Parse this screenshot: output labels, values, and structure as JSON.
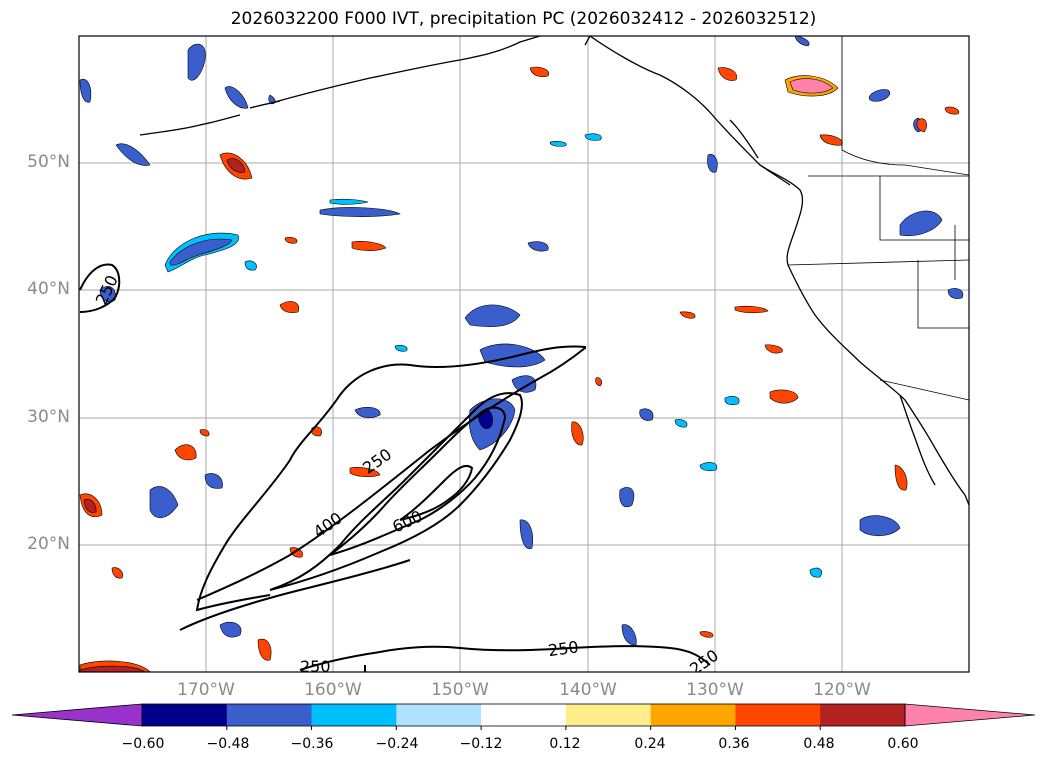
{
  "title": "2026032200 F000 IVT, precipitation PC (2026032412 - 2026032512)",
  "map": {
    "lat_labels": [
      "50°N",
      "40°N",
      "30°N",
      "20°N"
    ],
    "lon_labels": [
      "170°W",
      "160°W",
      "150°W",
      "140°W",
      "130°W",
      "120°W"
    ],
    "ivt_contour_labels": [
      "250",
      "250",
      "400",
      "600",
      "250",
      "250",
      "250"
    ],
    "colors": {
      "coast": "#000000",
      "grid": "#aaaaaa",
      "neg": [
        "#9932cc",
        "#00008b",
        "#3a5fcd",
        "#00bfff",
        "#b0e2ff"
      ],
      "pos": [
        "#ffec8b",
        "#ffa500",
        "#ff4500",
        "#b22222",
        "#ff82ab"
      ]
    }
  },
  "colorbar": {
    "ticks": [
      "−0.60",
      "−0.48",
      "−0.36",
      "−0.24",
      "−0.12",
      "0.12",
      "0.24",
      "0.36",
      "0.48",
      "0.60"
    ],
    "bins": [
      "#9932cc",
      "#00008b",
      "#3a5fcd",
      "#00bfff",
      "#b0e2ff",
      "#ffffff",
      "#ffec8b",
      "#ffa500",
      "#ff4500",
      "#b22222",
      "#ff82ab"
    ]
  }
}
